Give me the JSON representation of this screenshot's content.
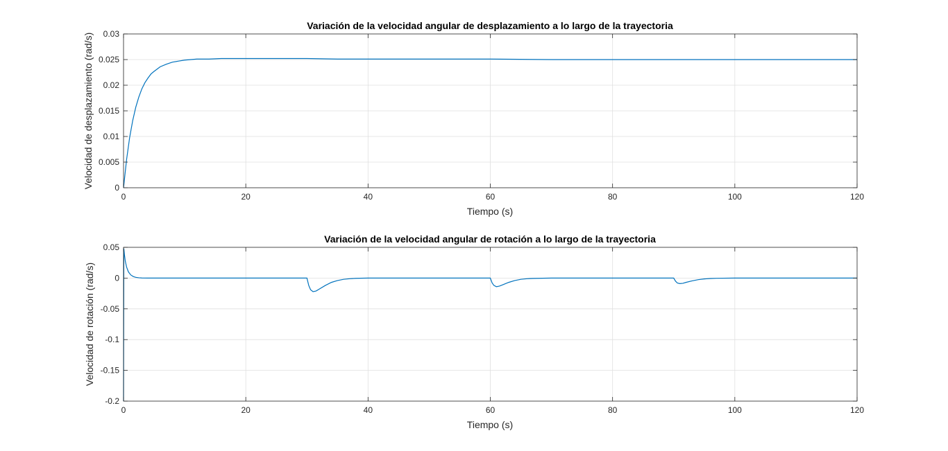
{
  "chart_data": [
    {
      "type": "line",
      "title": "Variación de la velocidad angular de desplazamiento a lo largo de la trayectoria",
      "xlabel": "Tiempo (s)",
      "ylabel": "Velocidad de desplazamiento (rad/s)",
      "xlim": [
        0,
        120
      ],
      "ylim": [
        0,
        0.03
      ],
      "xticks": [
        "0",
        "20",
        "40",
        "60",
        "80",
        "100",
        "120"
      ],
      "yticks": [
        "0",
        "0.005",
        "0.01",
        "0.015",
        "0.02",
        "0.025",
        "0.03"
      ],
      "grid": true,
      "line_color": "#0072BD",
      "series": [
        {
          "x": [
            0,
            0.5,
            1,
            1.5,
            2,
            2.5,
            3,
            3.5,
            4,
            4.5,
            5,
            6,
            7,
            8,
            9,
            10,
            11,
            12,
            14,
            16,
            20,
            25,
            30,
            35,
            40,
            50,
            60,
            70,
            80,
            90,
            100,
            110,
            120
          ],
          "values": [
            0,
            0.0055,
            0.0098,
            0.0131,
            0.0157,
            0.0177,
            0.0193,
            0.0205,
            0.0214,
            0.0222,
            0.0227,
            0.0236,
            0.0241,
            0.0245,
            0.0247,
            0.0249,
            0.025,
            0.0251,
            0.0251,
            0.0252,
            0.0252,
            0.0252,
            0.0252,
            0.0251,
            0.0251,
            0.0251,
            0.0251,
            0.025,
            0.025,
            0.025,
            0.025,
            0.025,
            0.025
          ]
        }
      ]
    },
    {
      "type": "line",
      "title": "Variación de la velocidad angular de rotación a lo largo de la trayectoria",
      "xlabel": "Tiempo (s)",
      "ylabel": "Velocidad de rotación (rad/s)",
      "xlim": [
        0,
        120
      ],
      "ylim": [
        -0.2,
        0.05
      ],
      "xticks": [
        "0",
        "20",
        "40",
        "60",
        "80",
        "100",
        "120"
      ],
      "yticks": [
        "-0.2",
        "-0.15",
        "-0.1",
        "-0.05",
        "0",
        "0.05"
      ],
      "grid": true,
      "line_color": "#0072BD",
      "series": [
        {
          "x": [
            0,
            0.05,
            0.15,
            0.3,
            0.5,
            0.8,
            1.2,
            1.6,
            2,
            2.5,
            3,
            4,
            10,
            20,
            30,
            30.3,
            30.6,
            31,
            31.5,
            32,
            33,
            34,
            35,
            36,
            37,
            38,
            40,
            50,
            60,
            60.3,
            60.6,
            61,
            61.5,
            62,
            63,
            64,
            65,
            66,
            67,
            70,
            80,
            90,
            90.3,
            90.6,
            91,
            91.5,
            92,
            93,
            94,
            95,
            96,
            97,
            100,
            110,
            120
          ],
          "values": [
            -0.2,
            0.048,
            0.038,
            0.027,
            0.018,
            0.01,
            0.005,
            0.0025,
            0.0012,
            0.0005,
            0.0002,
            0,
            0,
            0,
            0,
            -0.012,
            -0.019,
            -0.022,
            -0.021,
            -0.018,
            -0.012,
            -0.007,
            -0.004,
            -0.002,
            -0.001,
            -0.0004,
            0,
            0,
            0,
            -0.008,
            -0.012,
            -0.014,
            -0.013,
            -0.011,
            -0.007,
            -0.004,
            -0.002,
            -0.001,
            -0.0005,
            0,
            0,
            0,
            -0.005,
            -0.008,
            -0.009,
            -0.0085,
            -0.007,
            -0.0045,
            -0.0026,
            -0.0014,
            -0.0007,
            -0.0003,
            0,
            0,
            0
          ]
        }
      ]
    }
  ]
}
